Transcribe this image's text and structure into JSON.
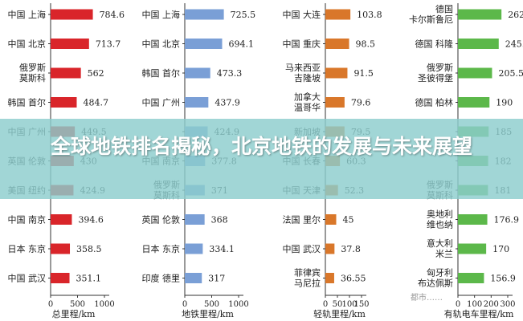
{
  "banner": {
    "title": "全球地铁排名揭秘，北京地铁的发展与未来展望"
  },
  "watermark": "都市……",
  "chart_data": [
    {
      "type": "bar",
      "orientation": "horizontal",
      "color": "#d9252a",
      "categories": [
        "中国 上海",
        "中国 北京",
        "俄罗斯\n莫斯科",
        "韩国 首尔",
        "中国 广州",
        "英国 伦敦",
        "美国 纽约",
        "中国 南京",
        "日本 东京",
        "中国 武汉"
      ],
      "values": [
        784.6,
        713.7,
        562,
        484.7,
        449.5,
        430,
        424.9,
        394.6,
        358.5,
        351.1
      ],
      "value_labels": [
        "784.6",
        "713.7",
        "562",
        "484.7",
        "449.5",
        "430",
        "424.9",
        "394.6",
        "358.5",
        "351.1"
      ],
      "xlabel": "总里程/km",
      "xticks": [
        "0",
        "500",
        "1000"
      ],
      "xlim": [
        0,
        1000
      ]
    },
    {
      "type": "bar",
      "orientation": "horizontal",
      "color": "#7a9fd6",
      "categories": [
        "中国 上海",
        "中国 北京",
        "韩国 首尔",
        "中国 广州",
        "",
        "中国 南京",
        "俄罗斯\n莫斯科",
        "英国 伦敦",
        "日本 东京",
        "印度 德里"
      ],
      "values": [
        725.5,
        694.1,
        473.3,
        437.9,
        424.9,
        377.8,
        371,
        368,
        334.1,
        317
      ],
      "value_labels": [
        "725.5",
        "694.1",
        "473.3",
        "437.9",
        "424.9",
        "377.8",
        "371",
        "368",
        "334.1",
        "317"
      ],
      "xlabel": "地铁里程/km",
      "xticks": [
        "0",
        "500",
        "1000"
      ],
      "xlim": [
        0,
        1000
      ]
    },
    {
      "type": "bar",
      "orientation": "horizontal",
      "color": "#d9772a",
      "categories": [
        "中国 大连",
        "中国 重庆",
        "马来西亚\n吉隆坡",
        "加拿大\n温哥华",
        "新加坡",
        "中国 长春",
        "中国 天津",
        "法国 里尔",
        "中国 武汉",
        "菲律宾\n马尼拉"
      ],
      "values": [
        103.8,
        98.5,
        91.5,
        79.6,
        79.5,
        60.3,
        52.3,
        45,
        37.8,
        36.55
      ],
      "value_labels": [
        "103.8",
        "98.5",
        "91.5",
        "79.6",
        "79.5",
        "60.3",
        "52.3",
        "45",
        "37.8",
        "36.55"
      ],
      "xlabel": "轻轨里程/km",
      "xticks": [
        "0",
        "50",
        "100",
        "150"
      ],
      "xlim": [
        0,
        150
      ]
    },
    {
      "type": "bar",
      "orientation": "horizontal",
      "color": "#5cb84a",
      "categories": [
        "德国\n卡尔斯鲁厄",
        "德国 科隆",
        "俄罗斯\n圣彼得堡",
        "德国 柏林",
        "",
        "",
        "俄罗斯\n莫斯科",
        "奥地利\n维也纳",
        "意大利\n米兰",
        "匈牙利\n布达佩斯"
      ],
      "values": [
        262.2,
        245.7,
        205.5,
        190,
        185,
        182,
        181,
        176.9,
        170,
        156.9
      ],
      "value_labels": [
        "262.2",
        "245.7",
        "205.5",
        "190",
        "185",
        "182",
        "181",
        "176.9",
        "170",
        "156.9"
      ],
      "xlabel": "有轨电车里程/km",
      "xticks": [
        "0",
        "100",
        "200",
        "300"
      ],
      "xlim": [
        0,
        300
      ]
    }
  ]
}
